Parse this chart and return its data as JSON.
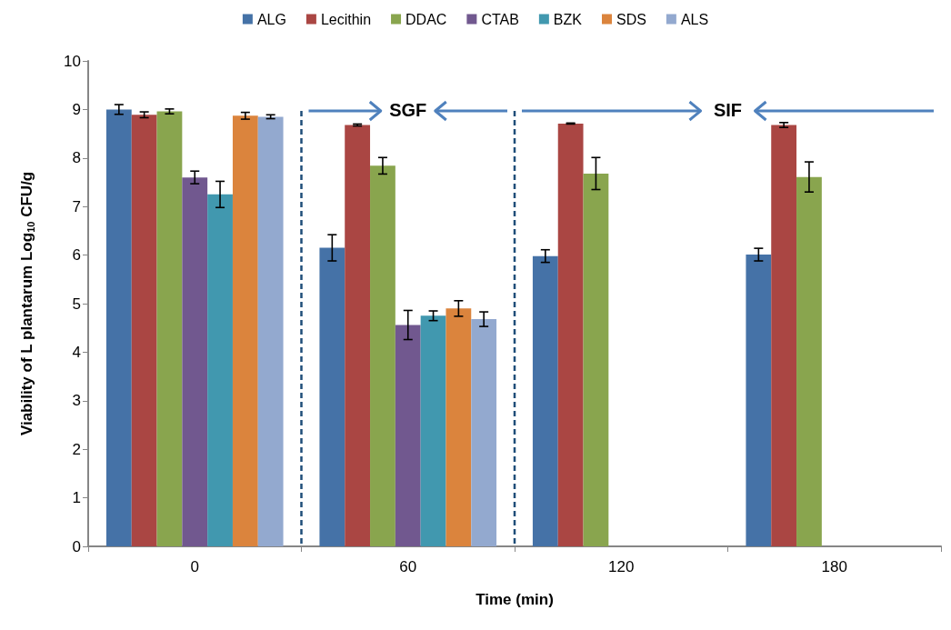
{
  "chart_data": {
    "type": "bar",
    "xlabel": "Time (min)",
    "ylabel": "Viability of L plantarum Log$_{10}$ CFU/g",
    "categories": [
      "0",
      "60",
      "120",
      "180"
    ],
    "series": [
      {
        "name": "ALG",
        "color": "#4572a7",
        "values": [
          9.0,
          6.15,
          5.98,
          6.01
        ],
        "errors": [
          0.1,
          0.27,
          0.13,
          0.13
        ]
      },
      {
        "name": "Lecithin",
        "color": "#aa4643",
        "values": [
          8.89,
          8.68,
          8.71,
          8.68
        ],
        "errors": [
          0.06,
          0.02,
          0.01,
          0.05
        ]
      },
      {
        "name": "DDAC",
        "color": "#89a54e",
        "values": [
          8.96,
          7.84,
          7.68,
          7.61
        ],
        "errors": [
          0.05,
          0.17,
          0.33,
          0.31
        ]
      },
      {
        "name": "CTAB",
        "color": "#71588f",
        "values": [
          7.6,
          4.56,
          0,
          0
        ],
        "errors": [
          0.13,
          0.3,
          null,
          null
        ]
      },
      {
        "name": "BZK",
        "color": "#4198af",
        "values": [
          7.25,
          4.75,
          0,
          0
        ],
        "errors": [
          0.27,
          0.1,
          null,
          null
        ]
      },
      {
        "name": "SDS",
        "color": "#db843d",
        "values": [
          8.87,
          4.9,
          0,
          0
        ],
        "errors": [
          0.07,
          0.16,
          null,
          null
        ]
      },
      {
        "name": "ALS",
        "color": "#93a9cf",
        "values": [
          8.85,
          4.68,
          0,
          0
        ],
        "errors": [
          0.04,
          0.15,
          null,
          null
        ]
      }
    ],
    "ylim": [
      0,
      10
    ],
    "yticks": [
      0,
      1,
      2,
      3,
      4,
      5,
      6,
      7,
      8,
      9,
      10
    ],
    "annotations": [
      "SGF",
      "SIF"
    ],
    "grid": false,
    "legend": "top"
  }
}
